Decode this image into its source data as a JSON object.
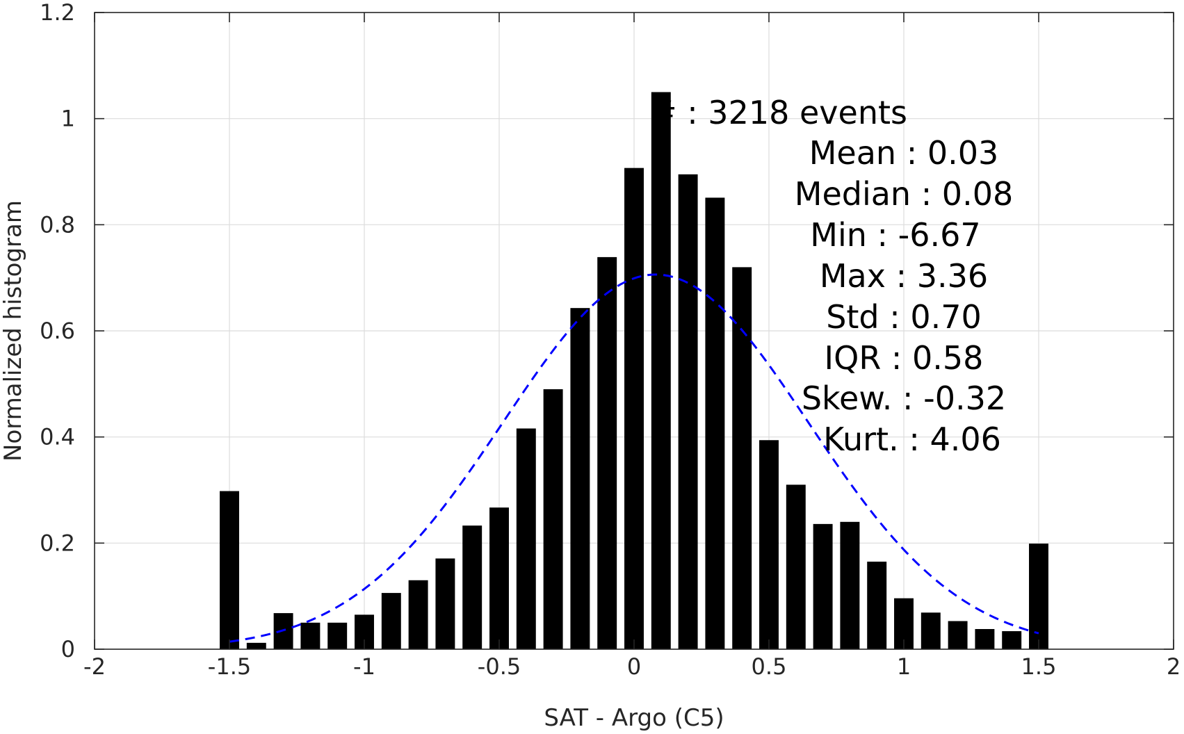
{
  "chart_data": {
    "type": "bar",
    "xlabel": "SAT - Argo (C5)",
    "ylabel": "Normalized histogram",
    "xlim": [
      -2,
      2
    ],
    "ylim": [
      0,
      1.2
    ],
    "xticks": [
      "-2",
      "-1.5",
      "-1",
      "-0.5",
      "0",
      "0.5",
      "1",
      "1.5",
      "2"
    ],
    "yticks": [
      "0",
      "0.2",
      "0.4",
      "0.6",
      "0.8",
      "1",
      "1.2"
    ],
    "grid": true,
    "bar_color": "#000000",
    "bins": [
      -1.5,
      -1.4,
      -1.3,
      -1.2,
      -1.1,
      -1.0,
      -0.9,
      -0.8,
      -0.7,
      -0.6,
      -0.5,
      -0.4,
      -0.3,
      -0.2,
      -0.1,
      0.0,
      0.1,
      0.2,
      0.3,
      0.4,
      0.5,
      0.6,
      0.7,
      0.8,
      0.9,
      1.0,
      1.1,
      1.2,
      1.3,
      1.4,
      1.5
    ],
    "values": [
      0.298,
      0.012,
      0.068,
      0.05,
      0.05,
      0.065,
      0.106,
      0.13,
      0.171,
      0.233,
      0.267,
      0.416,
      0.49,
      0.643,
      0.739,
      0.907,
      1.05,
      0.895,
      0.851,
      0.72,
      0.394,
      0.31,
      0.236,
      0.24,
      0.165,
      0.096,
      0.069,
      0.053,
      0.038,
      0.034,
      0.199
    ],
    "fit_curve": {
      "type": "normal",
      "mean": 0.08,
      "std": 0.565,
      "x_range": [
        -1.5,
        1.5
      ],
      "color": "#0000ff",
      "style": "dashed"
    },
    "annotations": [
      {
        "label": "#",
        "value": ": 3218 events"
      },
      {
        "label": "Mean",
        "value": ": 0.03"
      },
      {
        "label": "Median",
        "value": ": 0.08"
      },
      {
        "label": "Min",
        "value": ": -6.67"
      },
      {
        "label": "Max",
        "value": ": 3.36"
      },
      {
        "label": "Std",
        "value": ": 0.70"
      },
      {
        "label": "IQR",
        "value": ": 0.58"
      },
      {
        "label": "Skew.",
        "value": ": -0.32"
      },
      {
        "label": "Kurt.",
        "value": ": 4.06"
      }
    ]
  }
}
